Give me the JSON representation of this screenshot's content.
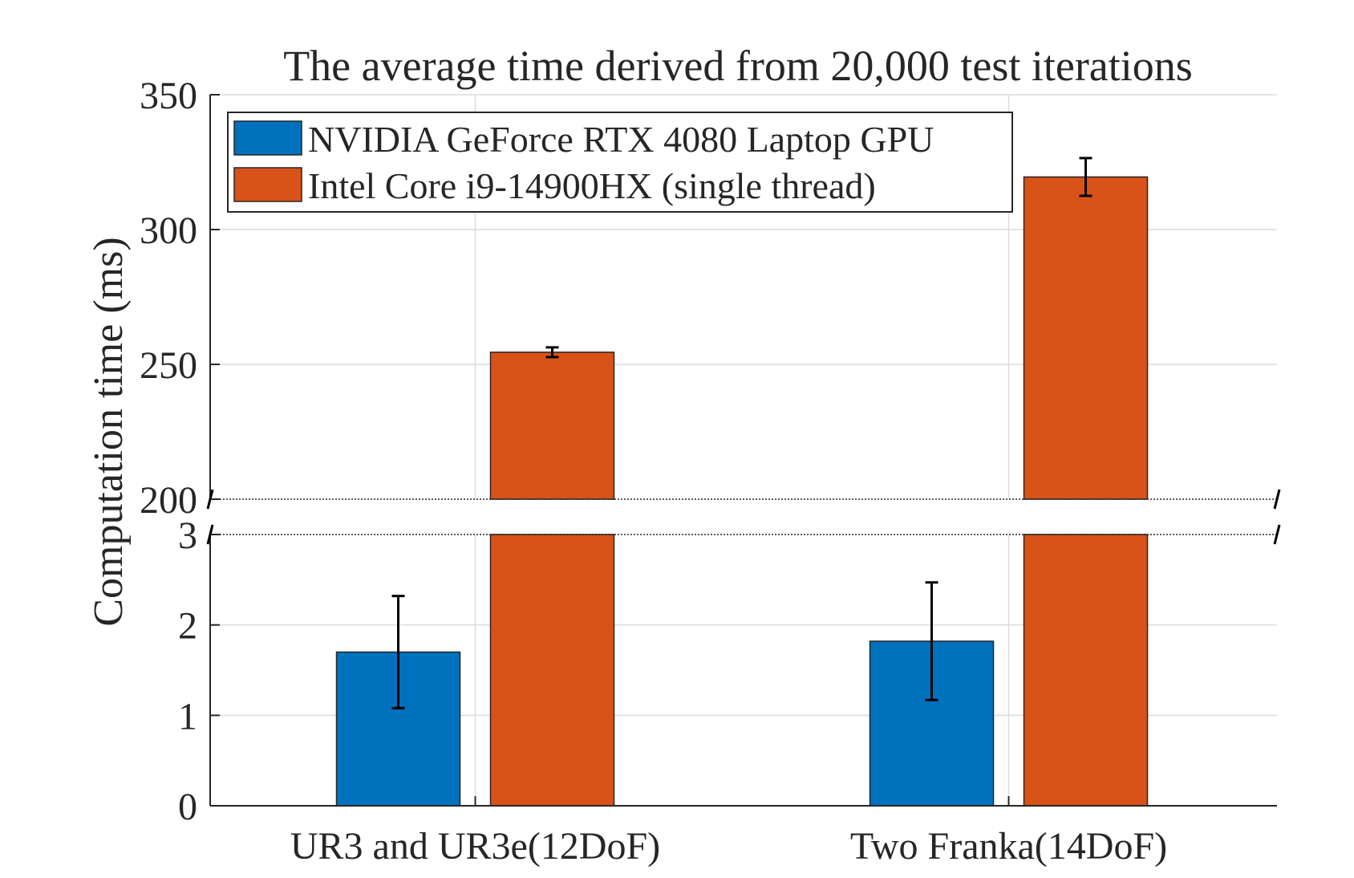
{
  "chart_data": {
    "type": "bar",
    "title": "The average time derived from 20,000 test iterations",
    "xlabel": "",
    "ylabel": "Computation time (ms)",
    "categories": [
      "UR3 and UR3e(12DoF)",
      "Two Franka(14DoF)"
    ],
    "series": [
      {
        "name": "NVIDIA GeForce RTX 4080 Laptop GPU",
        "color": "#0072BD",
        "values": [
          1.7,
          1.82
        ],
        "error": [
          0.62,
          0.65
        ]
      },
      {
        "name": "Intel Core i9-14900HX (single thread)",
        "color": "#D95319",
        "values": [
          254.5,
          319.5
        ],
        "error": [
          1.8,
          7.0
        ]
      }
    ],
    "broken_axis": {
      "lower": {
        "ylim": [
          0,
          3
        ],
        "ticks": [
          "0",
          "1",
          "2",
          "3"
        ],
        "tick_values": [
          0,
          1,
          2,
          3
        ]
      },
      "upper": {
        "ylim": [
          200,
          350
        ],
        "ticks": [
          "200",
          "250",
          "300",
          "350"
        ],
        "tick_values": [
          200,
          250,
          300,
          350
        ]
      }
    },
    "grid": true,
    "legend": "top-left"
  }
}
